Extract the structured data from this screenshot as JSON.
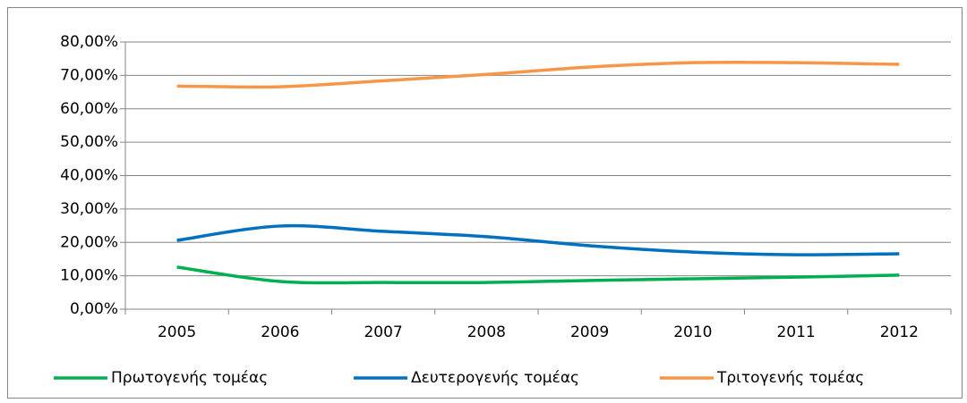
{
  "chart_data": {
    "type": "line",
    "categories": [
      "2005",
      "2006",
      "2007",
      "2008",
      "2009",
      "2010",
      "2011",
      "2012"
    ],
    "series": [
      {
        "name": "Πρωτογενής τομέας",
        "color": "#00b050",
        "values": [
          12.6,
          8.3,
          8.0,
          8.0,
          8.6,
          9.1,
          9.6,
          10.2
        ]
      },
      {
        "name": "Δευτερογενής τομέας",
        "color": "#0070c0",
        "values": [
          20.6,
          24.9,
          23.3,
          21.7,
          19.0,
          17.1,
          16.3,
          16.6
        ]
      },
      {
        "name": "Τριτογενής τομέας",
        "color": "#f79646",
        "values": [
          66.8,
          66.6,
          68.4,
          70.3,
          72.5,
          73.8,
          73.8,
          73.3
        ]
      }
    ],
    "ylim": [
      0,
      80
    ],
    "yticks": [
      {
        "value": 0,
        "label": "0,00%"
      },
      {
        "value": 10,
        "label": "10,00%"
      },
      {
        "value": 20,
        "label": "20,00%"
      },
      {
        "value": 30,
        "label": "30,00%"
      },
      {
        "value": 40,
        "label": "40,00%"
      },
      {
        "value": 50,
        "label": "50,00%"
      },
      {
        "value": 60,
        "label": "60,00%"
      },
      {
        "value": 70,
        "label": "70,00%"
      },
      {
        "value": 80,
        "label": "80,00%"
      }
    ],
    "grid": true
  }
}
